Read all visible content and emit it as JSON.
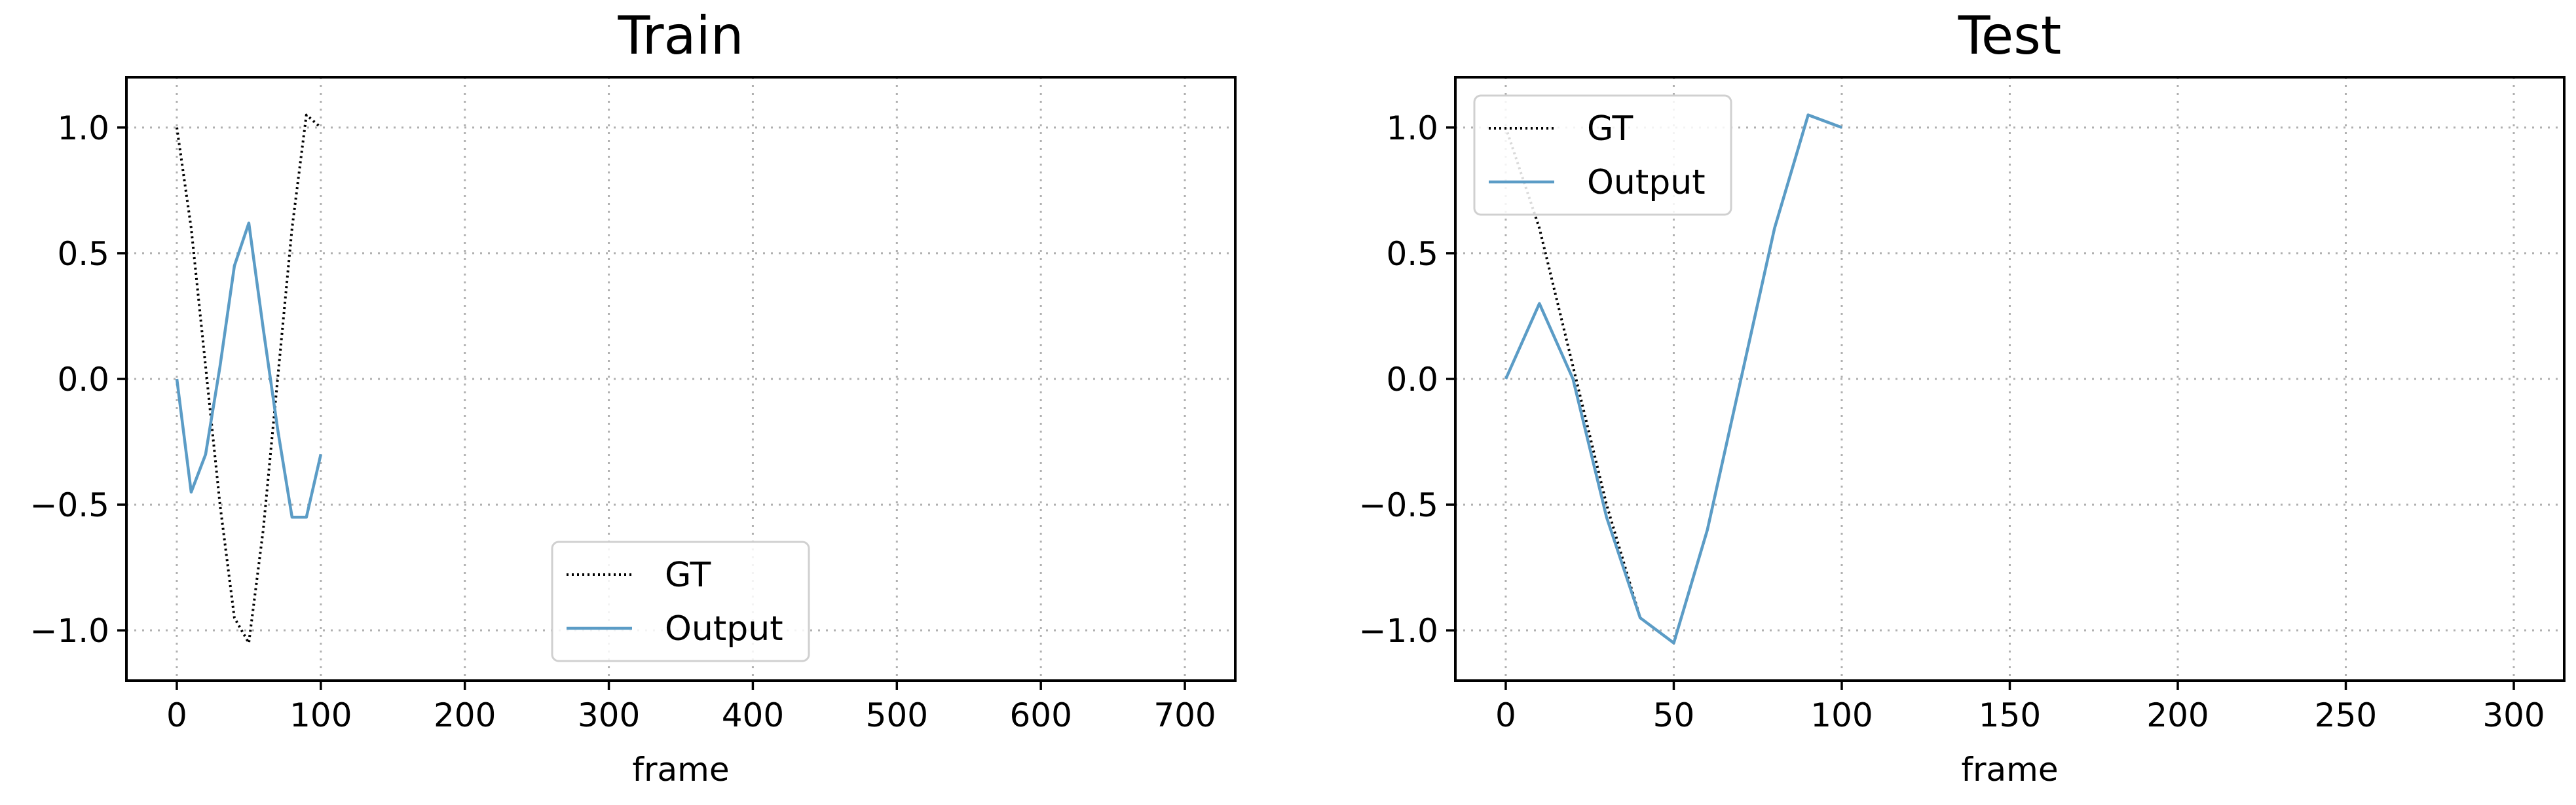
{
  "chart_data": [
    {
      "type": "line",
      "title": "Train",
      "xlabel": "frame",
      "ylabel": "",
      "xlim": [
        -35,
        735
      ],
      "ylim": [
        -1.2,
        1.2
      ],
      "xticks": [
        0,
        100,
        200,
        300,
        400,
        500,
        600,
        700
      ],
      "yticks": [
        -1.0,
        -0.5,
        0.0,
        0.5,
        1.0
      ],
      "ytick_labels": [
        "−1.0",
        "−0.5",
        "0.0",
        "0.5",
        "1.0"
      ],
      "grid": true,
      "legend": "lower center",
      "series": [
        {
          "name": "GT",
          "style": "dotted",
          "color": "#000000",
          "x": [
            0,
            10,
            20,
            30,
            40,
            50,
            60,
            70,
            80,
            90,
            100
          ],
          "y": [
            1.0,
            0.6,
            0.05,
            -0.5,
            -0.95,
            -1.05,
            -0.6,
            0.0,
            0.6,
            1.05,
            1.0
          ]
        },
        {
          "name": "Output",
          "style": "solid",
          "color": "#5b9cc6",
          "x": [
            0,
            10,
            20,
            30,
            40,
            50,
            60,
            70,
            80,
            90,
            100
          ],
          "y": [
            0.0,
            -0.45,
            -0.3,
            0.05,
            0.45,
            0.62,
            0.2,
            -0.2,
            -0.55,
            -0.55,
            -0.3
          ]
        }
      ]
    },
    {
      "type": "line",
      "title": "Test",
      "xlabel": "frame",
      "ylabel": "",
      "xlim": [
        -15,
        315
      ],
      "ylim": [
        -1.2,
        1.2
      ],
      "xticks": [
        0,
        50,
        100,
        150,
        200,
        250,
        300
      ],
      "yticks": [
        -1.0,
        -0.5,
        0.0,
        0.5,
        1.0
      ],
      "ytick_labels": [
        "−1.0",
        "−0.5",
        "0.0",
        "0.5",
        "1.0"
      ],
      "grid": true,
      "legend": "upper left",
      "series": [
        {
          "name": "GT",
          "style": "dotted",
          "color": "#000000",
          "x": [
            0,
            10,
            20,
            30,
            40,
            50,
            60,
            70,
            80,
            90,
            100
          ],
          "y": [
            1.0,
            0.6,
            0.05,
            -0.5,
            -0.95,
            -1.05,
            -0.6,
            0.0,
            0.6,
            1.05,
            1.0
          ]
        },
        {
          "name": "Output",
          "style": "solid",
          "color": "#5b9cc6",
          "x": [
            0,
            10,
            20,
            30,
            40,
            50,
            60,
            70,
            80,
            90,
            100
          ],
          "y": [
            0.0,
            0.3,
            0.0,
            -0.55,
            -0.95,
            -1.05,
            -0.6,
            0.0,
            0.6,
            1.05,
            1.0
          ]
        }
      ]
    }
  ]
}
